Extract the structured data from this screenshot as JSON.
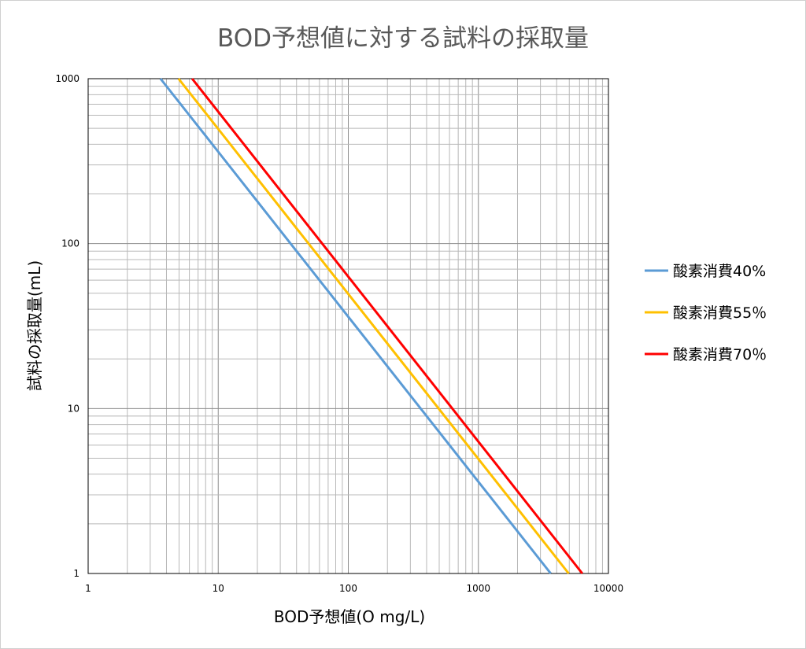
{
  "chart_data": {
    "type": "line",
    "title": "BOD予想値に対する試料の採取量",
    "xlabel": "BOD予想値(O mg/L)",
    "ylabel": "試料の採取量(mL)",
    "x_scale": "log",
    "y_scale": "log",
    "xlim": [
      1,
      10000
    ],
    "ylim": [
      1,
      1000
    ],
    "x_ticks": [
      "1",
      "10",
      "100",
      "1000",
      "10000"
    ],
    "y_ticks": [
      "1",
      "10",
      "100",
      "1000"
    ],
    "grid": true,
    "legend_position": "right",
    "series": [
      {
        "name": "酸素消費40%",
        "color": "#5b9bd5",
        "x": [
          3.6,
          10,
          100,
          1000,
          3600
        ],
        "y": [
          1000,
          360,
          36,
          3.6,
          1
        ]
      },
      {
        "name": "酸素消費55％",
        "color": "#ffc000",
        "x": [
          4.95,
          10,
          100,
          1000,
          4950
        ],
        "y": [
          1000,
          495,
          49.5,
          4.95,
          1
        ]
      },
      {
        "name": "酸素消費70％",
        "color": "#ff0000",
        "x": [
          6.3,
          10,
          100,
          1000,
          6300
        ],
        "y": [
          1000,
          630,
          63,
          6.3,
          1
        ]
      }
    ]
  }
}
